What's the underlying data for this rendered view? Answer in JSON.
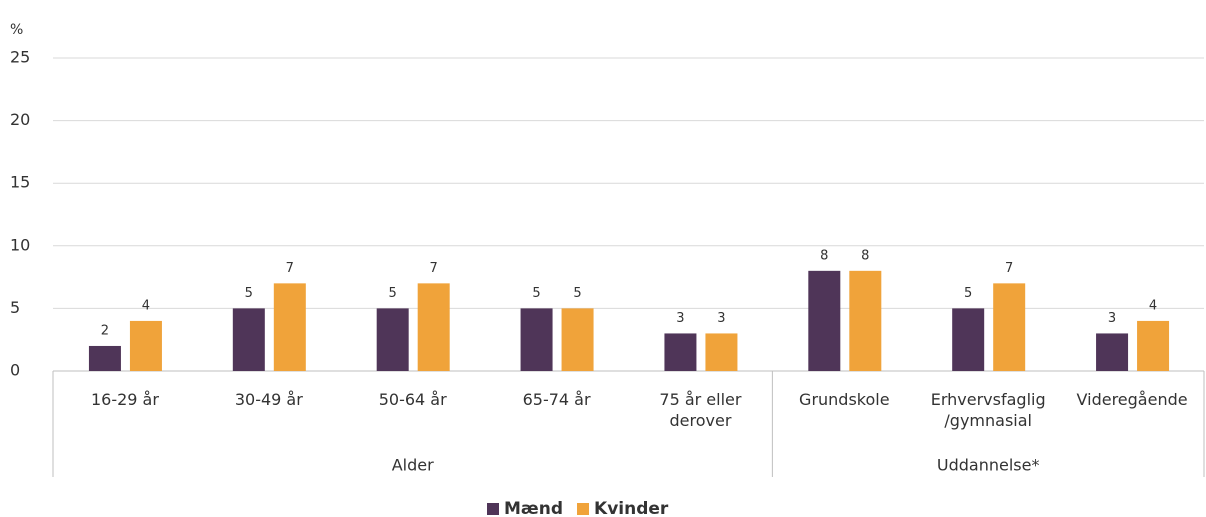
{
  "chart_data": {
    "type": "bar",
    "y_unit": "%",
    "categories": [
      "16-29 år",
      "30-49 år",
      "50-64 år",
      "65-74 år",
      "75 år eller derover",
      "Grundskole",
      "Erhvervsfaglig /gymnasial",
      "Videregående"
    ],
    "groups": [
      {
        "name": "Alder",
        "count": 5
      },
      {
        "name": "Uddannelse*",
        "count": 3
      }
    ],
    "series": [
      {
        "name": "Mænd",
        "color": "#4f3558",
        "values": [
          2,
          5,
          5,
          5,
          3,
          8,
          5,
          3
        ]
      },
      {
        "name": "Kvinder",
        "color": "#f0a33a",
        "values": [
          4,
          7,
          7,
          5,
          3,
          8,
          7,
          4
        ]
      }
    ],
    "ylim": [
      0,
      25
    ],
    "yticks": [
      0,
      5,
      10,
      15,
      20,
      25
    ],
    "grid": true,
    "legend": "bottom"
  }
}
